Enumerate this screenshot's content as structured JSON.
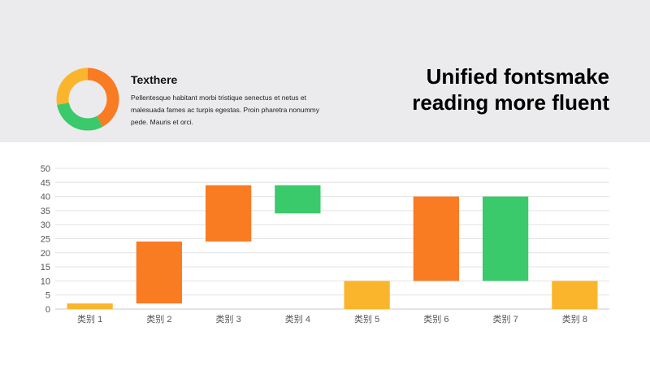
{
  "header": {
    "title": "Texthere",
    "body": "Pellentesque habitant morbi tristique senectus et netus et malesuada fames ac turpis egestas. Proin pharetra nonummy pede. Mauris et orci.",
    "headline_line1": "Unified fontsmake",
    "headline_line2": "reading more fluent"
  },
  "donut": {
    "segments": [
      {
        "color": "#f97b22",
        "fraction": 0.42
      },
      {
        "color": "#3ac96b",
        "fraction": 0.3
      },
      {
        "color": "#fbb52c",
        "fraction": 0.28
      }
    ]
  },
  "chart_data": {
    "type": "bar",
    "subtype": "waterfall",
    "categories": [
      "类别 1",
      "类别 2",
      "类别 3",
      "类别 4",
      "类别 5",
      "类别 6",
      "类别 7",
      "类别 8"
    ],
    "bars": [
      {
        "start": 0,
        "end": 2,
        "color": "#fbb52c"
      },
      {
        "start": 2,
        "end": 24,
        "color": "#f97b22"
      },
      {
        "start": 24,
        "end": 44,
        "color": "#f97b22"
      },
      {
        "start": 34,
        "end": 44,
        "color": "#3ac96b"
      },
      {
        "start": 0,
        "end": 10,
        "color": "#fbb52c"
      },
      {
        "start": 10,
        "end": 40,
        "color": "#f97b22"
      },
      {
        "start": 10,
        "end": 40,
        "color": "#3ac96b"
      },
      {
        "start": 0,
        "end": 10,
        "color": "#fbb52c"
      }
    ],
    "ylim": [
      0,
      50
    ],
    "yticks": [
      "0",
      "5",
      "10",
      "15",
      "20",
      "25",
      "30",
      "35",
      "40",
      "45",
      "50"
    ],
    "grid": true,
    "title": "",
    "xlabel": "",
    "ylabel": ""
  }
}
